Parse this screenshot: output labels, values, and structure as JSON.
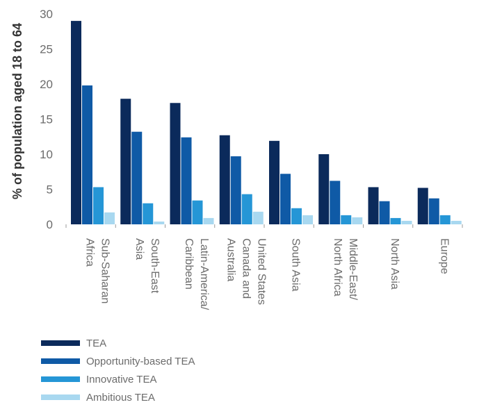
{
  "chart_data": {
    "type": "bar",
    "ylabel": "% of population aged 18 to 64",
    "ylim": [
      0,
      30
    ],
    "yticks": [
      0,
      5,
      10,
      15,
      20,
      25,
      30
    ],
    "categories": [
      [
        "Sub-Saharan",
        "Africa"
      ],
      [
        "South-East",
        "Asia"
      ],
      [
        "Latin-America/",
        "Caribbean"
      ],
      [
        "United States",
        "Canada and",
        "Australia"
      ],
      [
        "South Asia"
      ],
      [
        "Middle-East/",
        "North Africa"
      ],
      [
        "North Asia"
      ],
      [
        "Europe"
      ]
    ],
    "series": [
      {
        "name": "TEA",
        "color": "#0b2a5b",
        "values": [
          29.0,
          17.9,
          17.3,
          12.7,
          11.9,
          10.0,
          5.3,
          5.2
        ]
      },
      {
        "name": "Opportunity-based TEA",
        "color": "#0f5aa6",
        "values": [
          19.8,
          13.2,
          12.4,
          9.7,
          7.2,
          6.2,
          3.3,
          3.7
        ]
      },
      {
        "name": "Innovative TEA",
        "color": "#2596d6",
        "values": [
          5.3,
          3.0,
          3.4,
          4.3,
          2.3,
          1.3,
          0.9,
          1.3
        ]
      },
      {
        "name": "Ambitious TEA",
        "color": "#a8d8f0",
        "values": [
          1.7,
          0.4,
          0.9,
          1.8,
          1.3,
          1.0,
          0.5,
          0.5
        ]
      }
    ],
    "grid": false,
    "legend_position": "bottom-left"
  }
}
